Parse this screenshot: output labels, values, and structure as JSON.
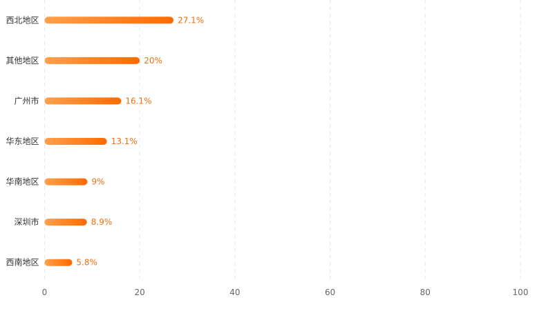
{
  "chart_data": {
    "type": "bar",
    "orientation": "horizontal",
    "categories": [
      "西北地区",
      "其他地区",
      "广州市",
      "华东地区",
      "华南地区",
      "深圳市",
      "西南地区"
    ],
    "values": [
      27.1,
      20,
      16.1,
      13.1,
      9,
      8.9,
      5.8
    ],
    "data_labels": [
      "27.1%",
      "20%",
      "16.1%",
      "13.1%",
      "9%",
      "8.9%",
      "5.8%"
    ],
    "x_ticks": [
      "0",
      "20",
      "40",
      "60",
      "80",
      "100"
    ],
    "xlim": [
      0,
      100
    ],
    "grid": "vertical dashed",
    "colors": {
      "bar_start": "#ffa04d",
      "bar_end": "#ff6a00",
      "label": "#f07010",
      "category_text": "#333333",
      "tick_text": "#666666",
      "grid": "#e6e6e6"
    }
  }
}
